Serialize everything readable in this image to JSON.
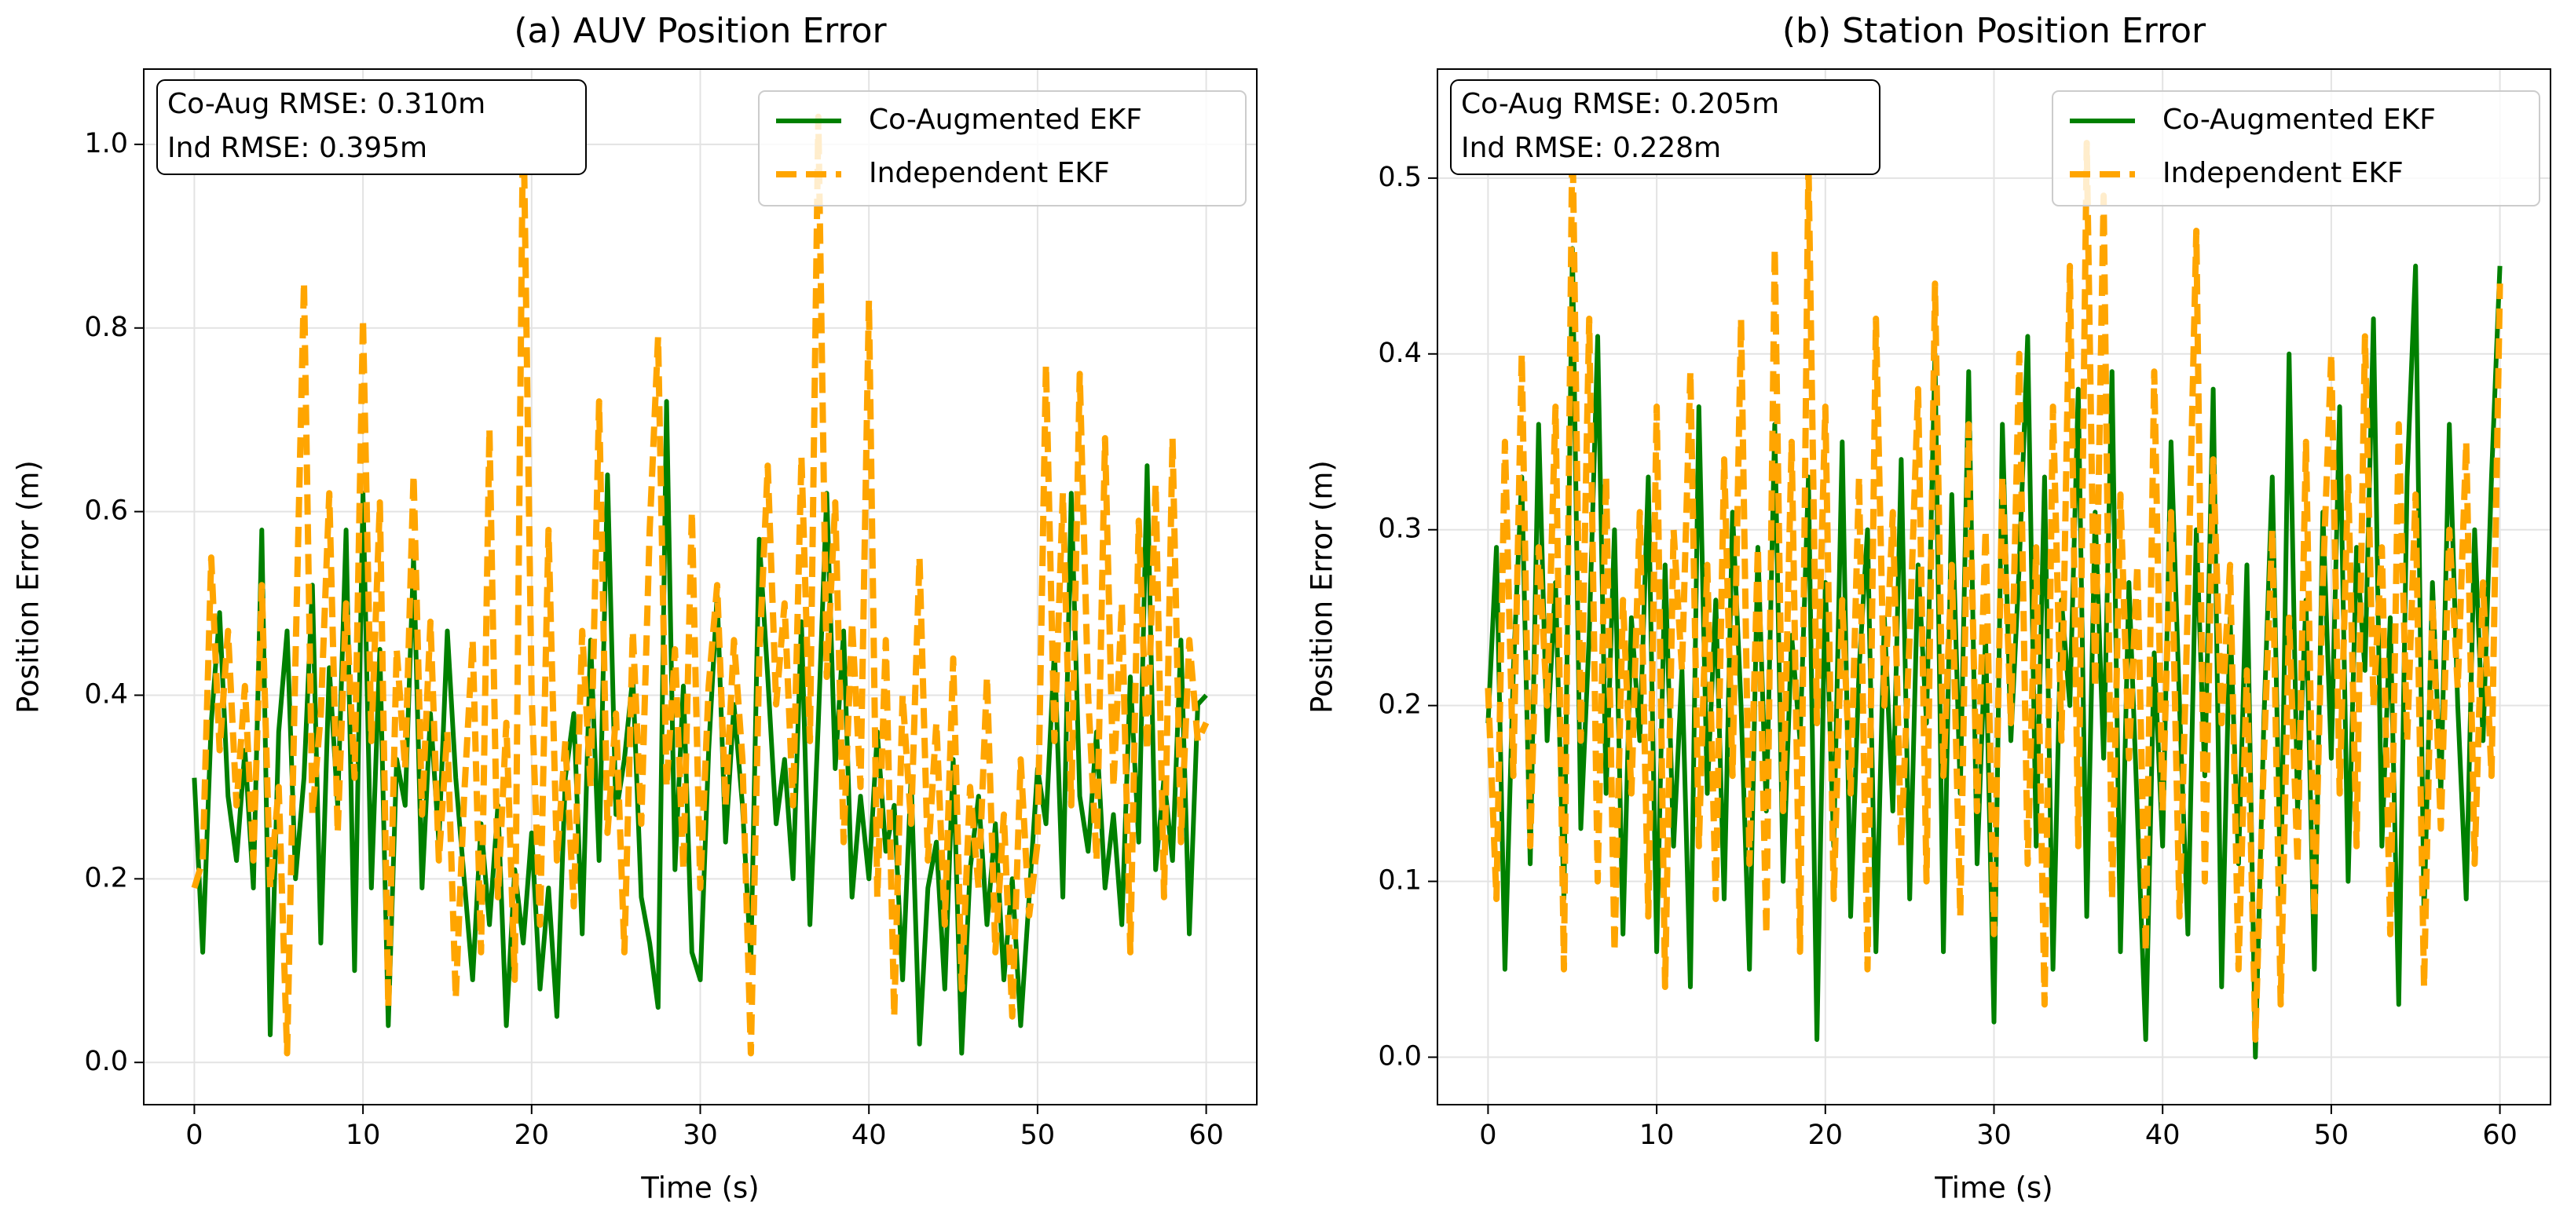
{
  "chart_data": [
    {
      "type": "line",
      "title": "(a) AUV Position Error",
      "xlabel": "Time (s)",
      "ylabel": "Position Error (m)",
      "annotations": [
        "Co-Aug RMSE: 0.310m",
        "Ind RMSE: 0.395m"
      ],
      "x": [
        0,
        0.5,
        1,
        1.5,
        2,
        2.5,
        3,
        3.5,
        4,
        4.5,
        5,
        5.5,
        6,
        6.5,
        7,
        7.5,
        8,
        8.5,
        9,
        9.5,
        10,
        10.5,
        11,
        11.5,
        12,
        12.5,
        13,
        13.5,
        14,
        14.5,
        15,
        15.5,
        16,
        16.5,
        17,
        17.5,
        18,
        18.5,
        19,
        19.5,
        20,
        20.5,
        21,
        21.5,
        22,
        22.5,
        23,
        23.5,
        24,
        24.5,
        25,
        25.5,
        26,
        26.5,
        27,
        27.5,
        28,
        28.5,
        29,
        29.5,
        30,
        30.5,
        31,
        31.5,
        32,
        32.5,
        33,
        33.5,
        34,
        34.5,
        35,
        35.5,
        36,
        36.5,
        37,
        37.5,
        38,
        38.5,
        39,
        39.5,
        40,
        40.5,
        41,
        41.5,
        42,
        42.5,
        43,
        43.5,
        44,
        44.5,
        45,
        45.5,
        46,
        46.5,
        47,
        47.5,
        48,
        48.5,
        49,
        49.5,
        50,
        50.5,
        51,
        51.5,
        52,
        52.5,
        53,
        53.5,
        54,
        54.5,
        55,
        55.5,
        56,
        56.5,
        57,
        57.5,
        58,
        58.5,
        59,
        59.5,
        60
      ],
      "series": [
        {
          "name": "Co-Augmented EKF",
          "color": "#008000",
          "dashed": false,
          "values": [
            0.31,
            0.12,
            0.37,
            0.49,
            0.29,
            0.22,
            0.34,
            0.19,
            0.58,
            0.03,
            0.36,
            0.47,
            0.2,
            0.31,
            0.52,
            0.13,
            0.43,
            0.28,
            0.58,
            0.1,
            0.62,
            0.19,
            0.45,
            0.04,
            0.33,
            0.28,
            0.55,
            0.19,
            0.38,
            0.24,
            0.47,
            0.31,
            0.2,
            0.09,
            0.26,
            0.15,
            0.28,
            0.04,
            0.21,
            0.13,
            0.25,
            0.08,
            0.19,
            0.05,
            0.31,
            0.38,
            0.14,
            0.46,
            0.22,
            0.64,
            0.27,
            0.33,
            0.42,
            0.18,
            0.13,
            0.06,
            0.72,
            0.21,
            0.41,
            0.12,
            0.09,
            0.34,
            0.51,
            0.24,
            0.39,
            0.28,
            0.11,
            0.57,
            0.42,
            0.26,
            0.33,
            0.2,
            0.48,
            0.15,
            0.37,
            0.62,
            0.32,
            0.47,
            0.18,
            0.29,
            0.2,
            0.36,
            0.23,
            0.28,
            0.09,
            0.31,
            0.02,
            0.19,
            0.24,
            0.08,
            0.33,
            0.01,
            0.21,
            0.29,
            0.15,
            0.26,
            0.09,
            0.2,
            0.04,
            0.18,
            0.32,
            0.26,
            0.45,
            0.18,
            0.62,
            0.29,
            0.23,
            0.36,
            0.19,
            0.27,
            0.15,
            0.42,
            0.24,
            0.65,
            0.21,
            0.31,
            0.22,
            0.46,
            0.14,
            0.39,
            0.4
          ]
        },
        {
          "name": "Independent EKF",
          "color": "#ffa500",
          "dashed": true,
          "values": [
            0.19,
            0.22,
            0.55,
            0.34,
            0.47,
            0.28,
            0.41,
            0.22,
            0.52,
            0.19,
            0.3,
            0.01,
            0.44,
            0.85,
            0.27,
            0.38,
            0.62,
            0.25,
            0.5,
            0.31,
            0.81,
            0.35,
            0.61,
            0.06,
            0.45,
            0.32,
            0.64,
            0.27,
            0.48,
            0.22,
            0.36,
            0.07,
            0.29,
            0.46,
            0.12,
            0.69,
            0.18,
            0.37,
            0.09,
            1.05,
            0.4,
            0.15,
            0.58,
            0.22,
            0.35,
            0.17,
            0.47,
            0.3,
            0.72,
            0.25,
            0.38,
            0.12,
            0.47,
            0.26,
            0.58,
            0.79,
            0.3,
            0.45,
            0.21,
            0.6,
            0.19,
            0.41,
            0.52,
            0.28,
            0.46,
            0.33,
            0.01,
            0.44,
            0.65,
            0.39,
            0.5,
            0.28,
            0.66,
            0.35,
            1.03,
            0.42,
            0.61,
            0.24,
            0.48,
            0.3,
            0.83,
            0.18,
            0.46,
            0.05,
            0.4,
            0.26,
            0.55,
            0.22,
            0.37,
            0.15,
            0.44,
            0.08,
            0.3,
            0.19,
            0.42,
            0.12,
            0.27,
            0.05,
            0.33,
            0.16,
            0.24,
            0.76,
            0.35,
            0.62,
            0.28,
            0.75,
            0.4,
            0.22,
            0.68,
            0.3,
            0.5,
            0.12,
            0.59,
            0.34,
            0.63,
            0.18,
            0.68,
            0.24,
            0.46,
            0.35,
            0.37
          ]
        }
      ],
      "xlim": [
        -3,
        63
      ],
      "ylim": [
        -0.046,
        1.082
      ],
      "xticks": [
        0,
        10,
        20,
        30,
        40,
        50,
        60
      ],
      "yticks": [
        {
          "value": 0,
          "label": "0.0"
        },
        0.2,
        0.4,
        0.6,
        0.8,
        {
          "value": 1,
          "label": "1.0"
        }
      ],
      "grid": true,
      "legend": "upper right"
    },
    {
      "type": "line",
      "title": "(b) Station Position Error",
      "xlabel": "Time (s)",
      "ylabel": "Position Error (m)",
      "annotations": [
        "Co-Aug RMSE: 0.205m",
        "Ind RMSE: 0.228m"
      ],
      "x": [
        0,
        0.5,
        1,
        1.5,
        2,
        2.5,
        3,
        3.5,
        4,
        4.5,
        5,
        5.5,
        6,
        6.5,
        7,
        7.5,
        8,
        8.5,
        9,
        9.5,
        10,
        10.5,
        11,
        11.5,
        12,
        12.5,
        13,
        13.5,
        14,
        14.5,
        15,
        15.5,
        16,
        16.5,
        17,
        17.5,
        18,
        18.5,
        19,
        19.5,
        20,
        20.5,
        21,
        21.5,
        22,
        22.5,
        23,
        23.5,
        24,
        24.5,
        25,
        25.5,
        26,
        26.5,
        27,
        27.5,
        28,
        28.5,
        29,
        29.5,
        30,
        30.5,
        31,
        31.5,
        32,
        32.5,
        33,
        33.5,
        34,
        34.5,
        35,
        35.5,
        36,
        36.5,
        37,
        37.5,
        38,
        38.5,
        39,
        39.5,
        40,
        40.5,
        41,
        41.5,
        42,
        42.5,
        43,
        43.5,
        44,
        44.5,
        45,
        45.5,
        46,
        46.5,
        47,
        47.5,
        48,
        48.5,
        49,
        49.5,
        50,
        50.5,
        51,
        51.5,
        52,
        52.5,
        53,
        53.5,
        54,
        54.5,
        55,
        55.5,
        56,
        56.5,
        57,
        57.5,
        58,
        58.5,
        59,
        59.5,
        60
      ],
      "series": [
        {
          "name": "Co-Augmented EKF",
          "color": "#008000",
          "dashed": false,
          "values": [
            0.19,
            0.29,
            0.05,
            0.22,
            0.33,
            0.11,
            0.36,
            0.18,
            0.27,
            0.09,
            0.46,
            0.13,
            0.24,
            0.41,
            0.15,
            0.3,
            0.07,
            0.25,
            0.18,
            0.33,
            0.06,
            0.28,
            0.12,
            0.22,
            0.04,
            0.37,
            0.15,
            0.26,
            0.09,
            0.31,
            0.2,
            0.05,
            0.29,
            0.14,
            0.36,
            0.1,
            0.24,
            0.18,
            0.33,
            0.01,
            0.27,
            0.12,
            0.35,
            0.08,
            0.22,
            0.3,
            0.06,
            0.25,
            0.14,
            0.34,
            0.09,
            0.28,
            0.19,
            0.4,
            0.06,
            0.32,
            0.15,
            0.39,
            0.11,
            0.24,
            0.02,
            0.36,
            0.18,
            0.28,
            0.41,
            0.12,
            0.33,
            0.05,
            0.26,
            0.2,
            0.38,
            0.08,
            0.31,
            0.17,
            0.39,
            0.06,
            0.27,
            0.14,
            0.01,
            0.23,
            0.12,
            0.35,
            0.2,
            0.07,
            0.3,
            0.16,
            0.38,
            0.04,
            0.25,
            0.11,
            0.28,
            0.0,
            0.19,
            0.33,
            0.09,
            0.4,
            0.14,
            0.26,
            0.05,
            0.31,
            0.17,
            0.37,
            0.1,
            0.29,
            0.22,
            0.42,
            0.12,
            0.25,
            0.03,
            0.33,
            0.45,
            0.08,
            0.27,
            0.15,
            0.36,
            0.2,
            0.09,
            0.3,
            0.18,
            0.33,
            0.45
          ]
        },
        {
          "name": "Independent EKF",
          "color": "#ffa500",
          "dashed": true,
          "values": [
            0.21,
            0.09,
            0.35,
            0.16,
            0.4,
            0.12,
            0.29,
            0.2,
            0.37,
            0.05,
            0.53,
            0.18,
            0.42,
            0.1,
            0.33,
            0.06,
            0.26,
            0.15,
            0.31,
            0.08,
            0.37,
            0.04,
            0.3,
            0.22,
            0.39,
            0.12,
            0.28,
            0.09,
            0.34,
            0.16,
            0.42,
            0.11,
            0.29,
            0.07,
            0.46,
            0.14,
            0.35,
            0.06,
            0.51,
            0.19,
            0.37,
            0.09,
            0.26,
            0.15,
            0.33,
            0.05,
            0.42,
            0.2,
            0.31,
            0.12,
            0.24,
            0.38,
            0.1,
            0.44,
            0.16,
            0.28,
            0.08,
            0.36,
            0.14,
            0.3,
            0.07,
            0.33,
            0.19,
            0.4,
            0.11,
            0.29,
            0.03,
            0.37,
            0.18,
            0.45,
            0.12,
            0.52,
            0.21,
            0.49,
            0.09,
            0.32,
            0.17,
            0.28,
            0.06,
            0.39,
            0.14,
            0.31,
            0.08,
            0.26,
            0.47,
            0.1,
            0.34,
            0.19,
            0.28,
            0.05,
            0.22,
            0.01,
            0.17,
            0.3,
            0.03,
            0.25,
            0.11,
            0.35,
            0.08,
            0.27,
            0.4,
            0.15,
            0.33,
            0.12,
            0.41,
            0.2,
            0.29,
            0.07,
            0.36,
            0.18,
            0.32,
            0.04,
            0.26,
            0.13,
            0.3,
            0.21,
            0.35,
            0.11,
            0.27,
            0.16,
            0.44
          ]
        }
      ],
      "xlim": [
        -3,
        63
      ],
      "ylim": [
        -0.027,
        0.562
      ],
      "xticks": [
        0,
        10,
        20,
        30,
        40,
        50,
        60
      ],
      "yticks": [
        {
          "value": 0,
          "label": "0.0"
        },
        0.1,
        0.2,
        0.3,
        0.4,
        0.5
      ],
      "grid": true,
      "legend": "upper right"
    }
  ]
}
